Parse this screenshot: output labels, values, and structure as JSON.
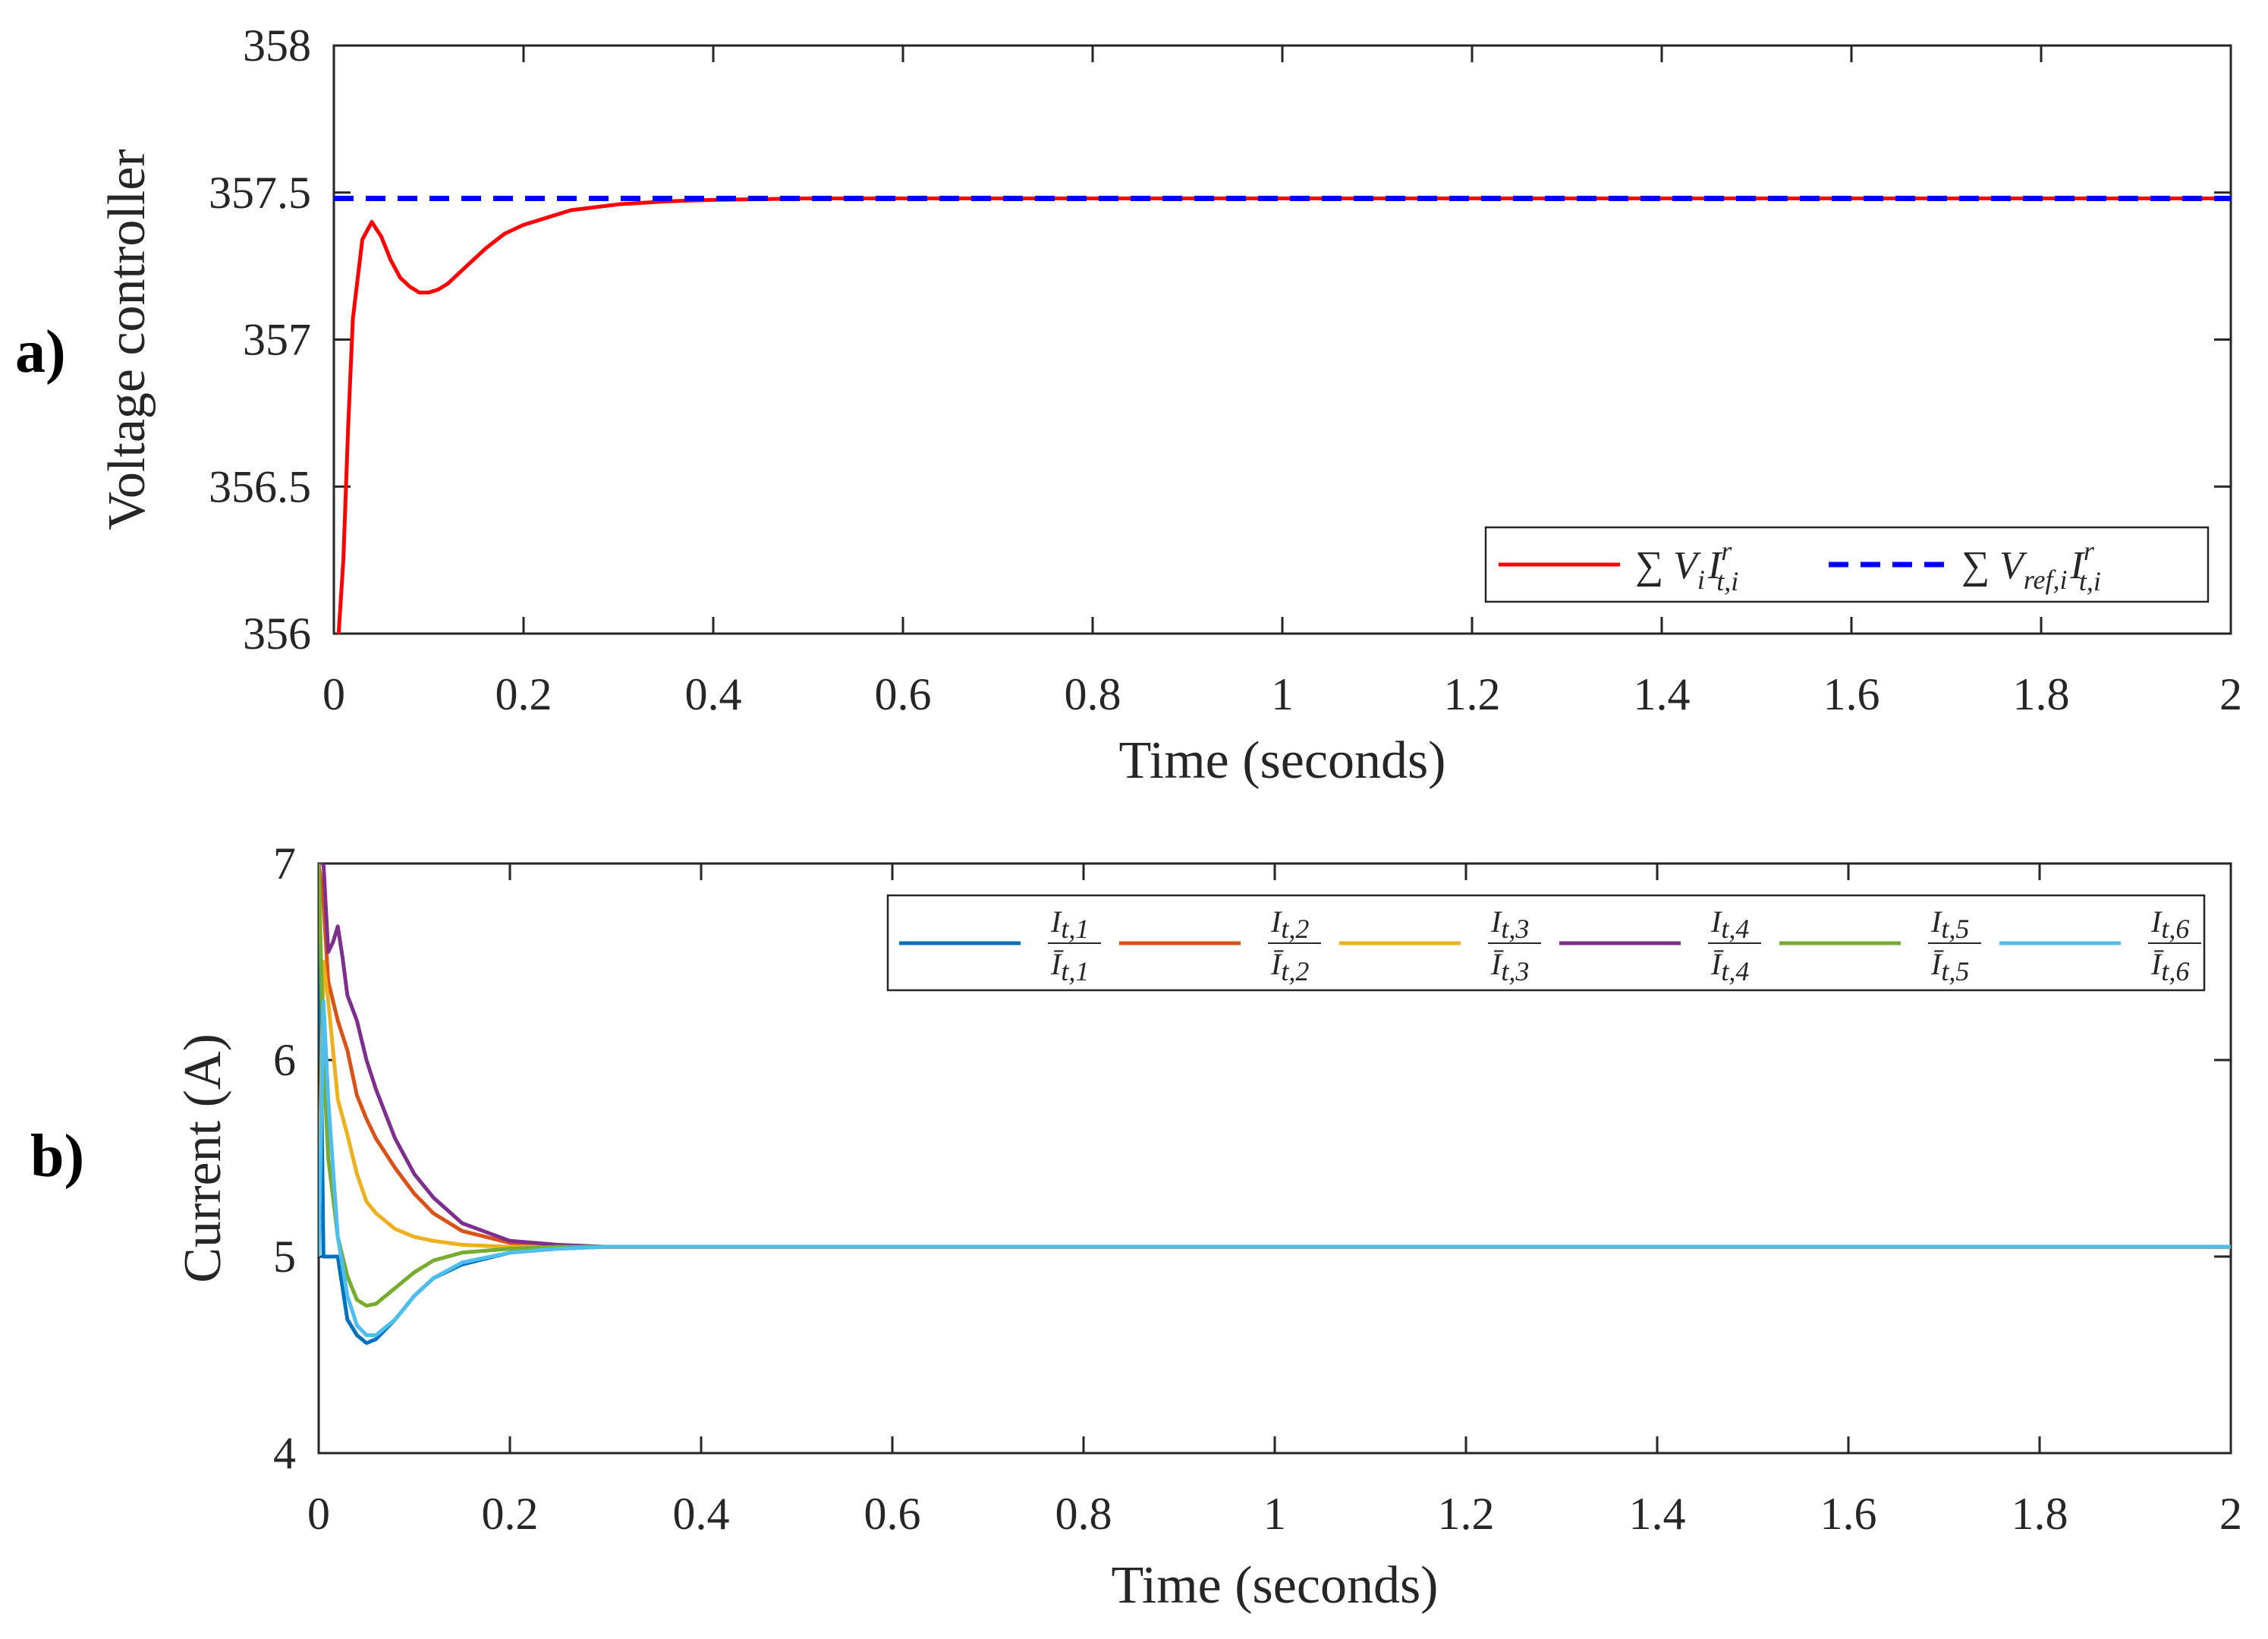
{
  "chart_data": [
    {
      "type": "line",
      "panel_label": "a)",
      "title": "",
      "xlabel": "Time (seconds)",
      "ylabel": "Voltage controller",
      "xlim": [
        0,
        2
      ],
      "ylim": [
        356,
        358
      ],
      "xticks": [
        "0",
        "0.2",
        "0.4",
        "0.6",
        "0.8",
        "1",
        "1.2",
        "1.4",
        "1.6",
        "1.8",
        "2"
      ],
      "yticks": [
        "356",
        "356.5",
        "357",
        "357.5",
        "358"
      ],
      "legend_position": "bottom-right",
      "series": [
        {
          "name": "∑ V_i I^r_{t,i}",
          "legend_parts": [
            "∑ V",
            "i",
            "I",
            "r",
            "t,i"
          ],
          "color": "#ff0000",
          "dash": "solid",
          "x": [
            0.005,
            0.01,
            0.015,
            0.02,
            0.03,
            0.04,
            0.05,
            0.06,
            0.07,
            0.08,
            0.09,
            0.1,
            0.11,
            0.12,
            0.14,
            0.16,
            0.18,
            0.2,
            0.25,
            0.3,
            0.35,
            0.4,
            0.5,
            0.6,
            0.8,
            1.0,
            1.5,
            2.0
          ],
          "y": [
            356.0,
            356.25,
            356.7,
            357.07,
            357.34,
            357.4,
            357.35,
            357.27,
            357.21,
            357.18,
            357.16,
            357.16,
            357.17,
            357.19,
            357.25,
            357.31,
            357.36,
            357.39,
            357.44,
            357.46,
            357.47,
            357.475,
            357.48,
            357.48,
            357.48,
            357.48,
            357.48,
            357.48
          ]
        },
        {
          "name": "∑ V_{ref,i} I^r_{t,i}",
          "legend_parts": [
            "∑ V",
            "ref,i",
            "I",
            "r",
            "t,i"
          ],
          "color": "#0000ff",
          "dash": "dashed",
          "x": [
            0,
            2
          ],
          "y": [
            357.48,
            357.48
          ]
        }
      ]
    },
    {
      "type": "line",
      "panel_label": "b)",
      "title": "",
      "xlabel": "Time (seconds)",
      "ylabel": "Current (A)",
      "xlim": [
        0,
        2
      ],
      "ylim": [
        4,
        7
      ],
      "xticks": [
        "0",
        "0.2",
        "0.4",
        "0.6",
        "0.8",
        "1",
        "1.2",
        "1.4",
        "1.6",
        "1.8",
        "2"
      ],
      "yticks": [
        "4",
        "5",
        "6",
        "7"
      ],
      "legend_position": "top-right",
      "series": [
        {
          "name": "I_{t,1}/Ī_{t,1}",
          "num": "I",
          "den": "Ī",
          "sub": "t,1",
          "color": "#0072bd",
          "x": [
            0,
            0.005,
            0.01,
            0.02,
            0.03,
            0.04,
            0.05,
            0.06,
            0.08,
            0.1,
            0.12,
            0.15,
            0.2,
            0.25,
            0.3,
            0.4,
            0.5,
            1.0,
            2.0
          ],
          "y": [
            7.0,
            5.0,
            5.0,
            5.0,
            4.68,
            4.6,
            4.56,
            4.58,
            4.68,
            4.8,
            4.89,
            4.96,
            5.02,
            5.04,
            5.05,
            5.05,
            5.05,
            5.05,
            5.05
          ]
        },
        {
          "name": "I_{t,2}/Ī_{t,2}",
          "num": "I",
          "den": "Ī",
          "sub": "t,2",
          "color": "#d95319",
          "x": [
            0,
            0.005,
            0.01,
            0.02,
            0.03,
            0.04,
            0.05,
            0.06,
            0.08,
            0.1,
            0.12,
            0.15,
            0.2,
            0.25,
            0.3,
            0.4,
            0.5,
            1.0,
            2.0
          ],
          "y": [
            7.0,
            6.8,
            6.4,
            6.2,
            6.05,
            5.82,
            5.7,
            5.6,
            5.45,
            5.32,
            5.22,
            5.13,
            5.07,
            5.05,
            5.05,
            5.05,
            5.05,
            5.05,
            5.05
          ]
        },
        {
          "name": "I_{t,3}/Ī_{t,3}",
          "num": "I",
          "den": "Ī",
          "sub": "t,3",
          "color": "#edb120",
          "x": [
            0,
            0.005,
            0.01,
            0.02,
            0.03,
            0.04,
            0.05,
            0.06,
            0.08,
            0.1,
            0.12,
            0.15,
            0.2,
            0.25,
            0.3,
            0.4,
            0.5,
            1.0,
            2.0
          ],
          "y": [
            5.2,
            6.5,
            6.3,
            5.8,
            5.62,
            5.42,
            5.28,
            5.22,
            5.14,
            5.1,
            5.08,
            5.06,
            5.05,
            5.05,
            5.05,
            5.05,
            5.05,
            5.05,
            5.05
          ]
        },
        {
          "name": "I_{t,4}/Ī_{t,4}",
          "num": "I",
          "den": "Ī",
          "sub": "t,4",
          "color": "#7e2f8e",
          "x": [
            0,
            0.005,
            0.01,
            0.015,
            0.02,
            0.025,
            0.03,
            0.04,
            0.05,
            0.06,
            0.08,
            0.1,
            0.12,
            0.15,
            0.2,
            0.25,
            0.3,
            0.4,
            0.5,
            1.0,
            2.0
          ],
          "y": [
            7.0,
            7.0,
            6.55,
            6.6,
            6.68,
            6.52,
            6.33,
            6.2,
            6.0,
            5.85,
            5.6,
            5.42,
            5.3,
            5.17,
            5.08,
            5.06,
            5.05,
            5.05,
            5.05,
            5.05,
            5.05
          ]
        },
        {
          "name": "I_{t,5}/Ī_{t,5}",
          "num": "I",
          "den": "Ī",
          "sub": "t,5",
          "color": "#77ac30",
          "x": [
            0,
            0.005,
            0.01,
            0.02,
            0.03,
            0.04,
            0.05,
            0.06,
            0.08,
            0.1,
            0.12,
            0.15,
            0.2,
            0.25,
            0.3,
            0.4,
            0.5,
            1.0,
            2.0
          ],
          "y": [
            7.0,
            6.0,
            5.5,
            5.1,
            4.9,
            4.78,
            4.75,
            4.76,
            4.84,
            4.92,
            4.98,
            5.02,
            5.04,
            5.05,
            5.05,
            5.05,
            5.05,
            5.05,
            5.05
          ]
        },
        {
          "name": "I_{t,6}/Ī_{t,6}",
          "num": "I",
          "den": "Ī",
          "sub": "t,6",
          "color": "#4dbeee",
          "x": [
            0,
            0.005,
            0.01,
            0.02,
            0.03,
            0.04,
            0.05,
            0.06,
            0.08,
            0.1,
            0.12,
            0.15,
            0.2,
            0.25,
            0.3,
            0.4,
            0.5,
            1.0,
            2.0
          ],
          "y": [
            5.0,
            6.3,
            5.8,
            5.1,
            4.8,
            4.65,
            4.6,
            4.6,
            4.68,
            4.8,
            4.89,
            4.97,
            5.02,
            5.04,
            5.05,
            5.05,
            5.05,
            5.05,
            5.05
          ]
        }
      ]
    }
  ]
}
